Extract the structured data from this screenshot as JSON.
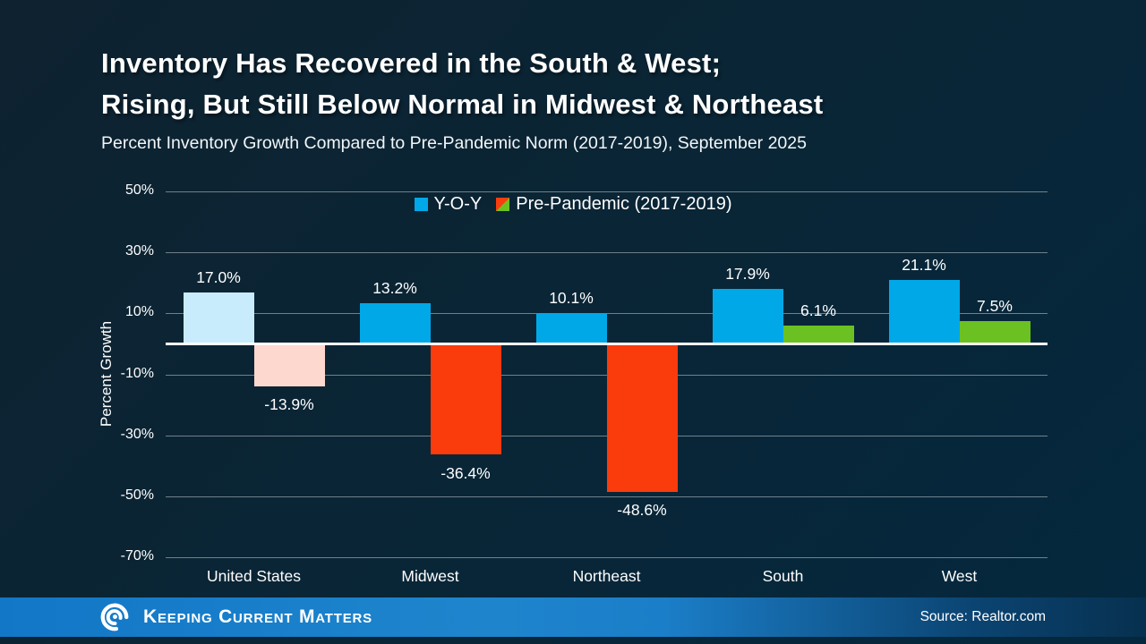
{
  "title": {
    "line1": "Inventory Has Recovered in the South & West;",
    "line2": "Rising, But Still Below Normal in Midwest & Northeast"
  },
  "subtitle": "Percent Inventory Growth Compared to Pre-Pandemic Norm (2017-2019), September 2025",
  "legend": {
    "yoy_label": "Y-O-Y",
    "yoy_color": "#00a8e8",
    "prepandemic_label": "Pre-Pandemic (2017-2019)",
    "prepandemic_colors": [
      "#f93d0e",
      "#6cc122"
    ]
  },
  "chart_data": {
    "type": "bar",
    "categories": [
      "United States",
      "Midwest",
      "Northeast",
      "South",
      "West"
    ],
    "series": [
      {
        "name": "Y-O-Y",
        "values": [
          17.0,
          13.2,
          10.1,
          17.9,
          21.1
        ],
        "labels": [
          "17.0%",
          "13.2%",
          "10.1%",
          "17.9%",
          "21.1%"
        ],
        "colors": [
          "#c8ecfb",
          "#00a8e8",
          "#00a8e8",
          "#00a8e8",
          "#00a8e8"
        ]
      },
      {
        "name": "Pre-Pandemic (2017-2019)",
        "values": [
          -13.9,
          -36.4,
          -48.6,
          6.1,
          7.5
        ],
        "labels": [
          "-13.9%",
          "-36.4%",
          "-48.6%",
          "6.1%",
          "7.5%"
        ],
        "colors": [
          "#fdd8ce",
          "#fa3b0c",
          "#fa3b0c",
          "#6cc122",
          "#6cc122"
        ]
      }
    ],
    "title": "Inventory Has Recovered in the South & West; Rising, But Still Below Normal in Midwest & Northeast",
    "xlabel": "",
    "ylabel": "Percent Growth",
    "ylim": [
      -70,
      50
    ],
    "yticks": [
      50,
      30,
      10,
      -10,
      -30,
      -50,
      -70
    ],
    "ytick_labels": [
      "50%",
      "30%",
      "10%",
      "-10%",
      "-30%",
      "-50%",
      "-70%"
    ],
    "grid": true,
    "legend_position": "top-center",
    "zero_line": true
  },
  "footer": {
    "brand": "Keeping Current Matters",
    "source": "Source: Realtor.com"
  }
}
